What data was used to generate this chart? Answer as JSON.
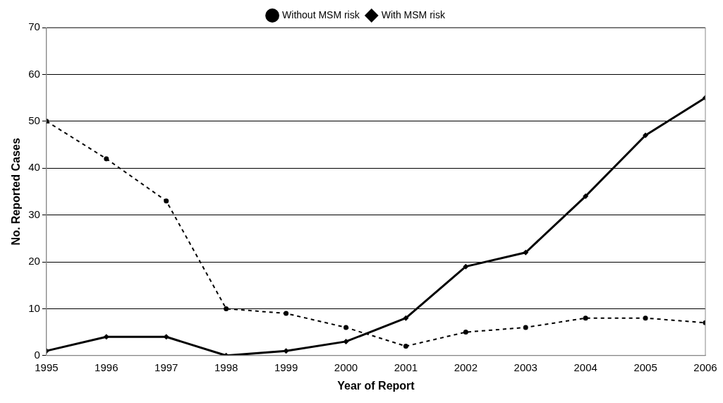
{
  "chart_data": {
    "type": "line",
    "xlabel": "Year of Report",
    "ylabel": "No. Reported Cases",
    "x": [
      1995,
      1996,
      1997,
      1998,
      1999,
      2000,
      2001,
      2002,
      2003,
      2004,
      2005,
      2006
    ],
    "series": [
      {
        "name": "Without MSM risk",
        "color": "#000000",
        "values": [
          50,
          42,
          33,
          10,
          9,
          6,
          2,
          5,
          6,
          8,
          8,
          7
        ],
        "marker": "circle",
        "line_style": "dashed"
      },
      {
        "name": "With MSM risk",
        "color": "#000000",
        "values": [
          1,
          4,
          4,
          0,
          1,
          3,
          8,
          19,
          22,
          34,
          47,
          55
        ],
        "marker": "diamond",
        "line_style": "solid"
      }
    ],
    "xlim": [
      1995,
      2006
    ],
    "xticks": [
      1995,
      1996,
      1997,
      1998,
      1999,
      2000,
      2001,
      2002,
      2003,
      2004,
      2005,
      2006
    ],
    "ylim": [
      0,
      70
    ],
    "yticks": [
      0,
      10,
      20,
      30,
      40,
      50,
      60,
      70
    ],
    "grid": "y",
    "legend": "top"
  }
}
